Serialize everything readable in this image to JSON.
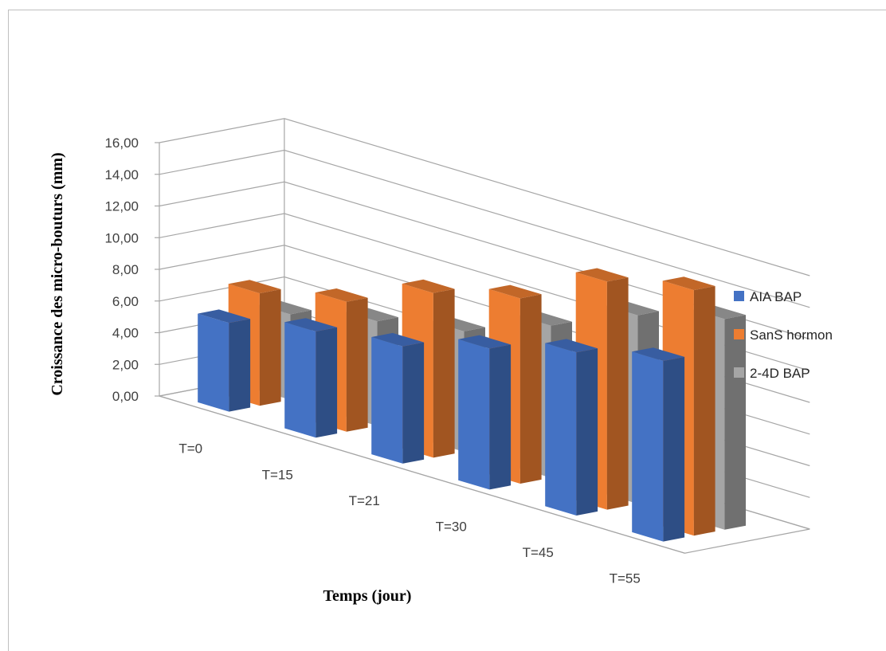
{
  "chart_data": {
    "type": "bar",
    "subtype": "3d-clustered-depth",
    "title": "",
    "xlabel": "Temps (jour)",
    "ylabel": "Croissance des micro-bouturs (mm)",
    "ylim": [
      0,
      16
    ],
    "yticks": [
      "0,00",
      "2,00",
      "4,00",
      "6,00",
      "8,00",
      "10,00",
      "12,00",
      "14,00",
      "16,00"
    ],
    "categories": [
      "T=0",
      "T=15",
      "T=21",
      "T=30",
      "T=45",
      "T=55"
    ],
    "grid": true,
    "legend_position": "right",
    "series": [
      {
        "name": "AIA BAP",
        "color": "#4472C4",
        "values": [
          5.6,
          6.7,
          7.4,
          8.9,
          10.3,
          11.4
        ]
      },
      {
        "name": "SanS hormon",
        "color": "#ED7D31",
        "values": [
          7.1,
          8.2,
          10.4,
          11.7,
          14.4,
          15.5
        ]
      },
      {
        "name": "2-4D BAP",
        "color": "#A5A5A5",
        "values": [
          5.4,
          6.6,
          7.6,
          9.6,
          11.9,
          13.3
        ]
      }
    ]
  }
}
